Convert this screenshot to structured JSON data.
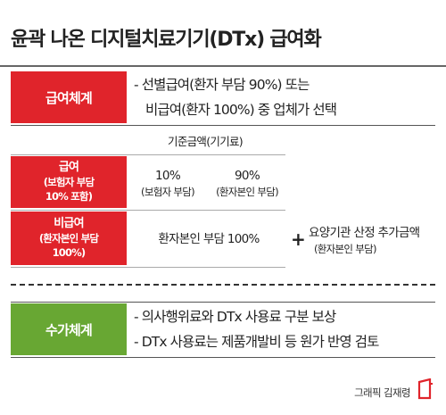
{
  "title": "윤곽 나온 디지털치료기기(DTx) 급여화",
  "payment": {
    "label": "급여체계",
    "bullets": [
      "- 선별급여(환자 부담 90%) 또는",
      "비급여(환자 100%) 중 업체가 선택"
    ]
  },
  "base_fee_label": "기준금액(기기료)",
  "rows": {
    "covered": {
      "label": "급여",
      "sub1": "(보험자 부담",
      "sub2": "10% 포함)",
      "col1_pct": "10%",
      "col1_who": "(보험자 부담)",
      "col2_pct": "90%",
      "col2_who": "(환자본인 부담)"
    },
    "noncovered": {
      "label": "비급여",
      "sub1": "(환자본인 부담",
      "sub2": "100%)",
      "value": "환자본인 부담 100%"
    }
  },
  "additional": {
    "plus": "+",
    "line1": "요양기관 산정 추가금액",
    "line2": "(환자본인 부담)"
  },
  "fee": {
    "label": "수가체계",
    "bullets": [
      "- 의사행위료와 DTx 사용료 구분 보상",
      "- DTx 사용료는 제품개발비 등 원가 반영 검토"
    ]
  },
  "credit": "그래픽 김재령",
  "colors": {
    "red": "#e0242b",
    "green": "#68a733"
  }
}
